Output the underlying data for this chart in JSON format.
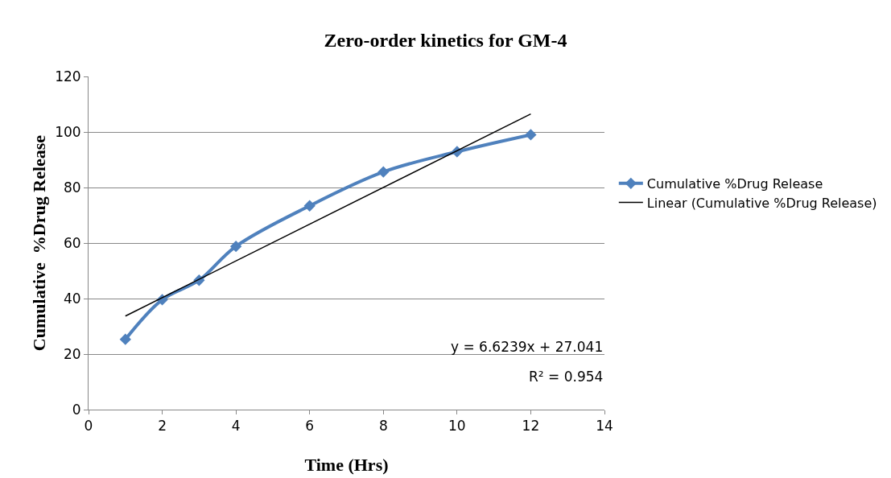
{
  "chart_data": {
    "type": "line",
    "title": "Zero-order kinetics for GM-4",
    "xlabel": "Time (Hrs)",
    "ylabel": "Cumulative  %Drug Release",
    "x": [
      1,
      2,
      3,
      4,
      6,
      8,
      10,
      12
    ],
    "series": [
      {
        "name": "Cumulative %Drug Release",
        "color": "#4f81bd",
        "values": [
          25.3,
          39.6,
          46.6,
          58.8,
          73.4,
          85.6,
          92.9,
          99.0
        ],
        "marker": "diamond"
      },
      {
        "name": "Linear (Cumulative %Drug Release)",
        "color": "#000000",
        "type": "line",
        "x": [
          1,
          12
        ],
        "values": [
          33.7,
          106.5
        ],
        "marker": "none"
      }
    ],
    "xlim": [
      0,
      14
    ],
    "xticks": [
      0,
      2,
      4,
      6,
      8,
      10,
      12,
      14
    ],
    "ylim": [
      0,
      120
    ],
    "yticks": [
      0,
      20,
      40,
      60,
      80,
      100,
      120
    ],
    "grid": "y",
    "legend": "right",
    "line_style": "solid",
    "annotations": [
      "y = 6.6239x + 27.041",
      "R² = 0.954"
    ]
  }
}
